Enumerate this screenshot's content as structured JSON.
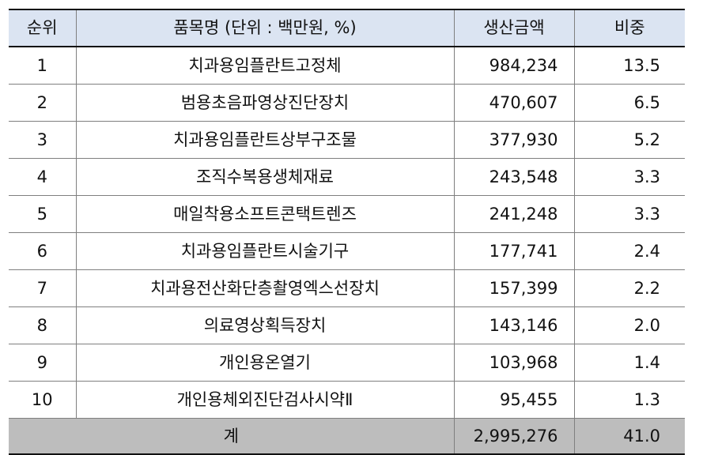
{
  "table": {
    "headers": {
      "rank": "순위",
      "name": "품목명 (단위 : 백만원, %)",
      "amount": "생산금액",
      "share": "비중"
    },
    "rows": [
      {
        "rank": "1",
        "name": "치과용임플란트고정체",
        "amount": "984,234",
        "share": "13.5"
      },
      {
        "rank": "2",
        "name": "범용초음파영상진단장치",
        "amount": "470,607",
        "share": "6.5"
      },
      {
        "rank": "3",
        "name": "치과용임플란트상부구조물",
        "amount": "377,930",
        "share": "5.2"
      },
      {
        "rank": "4",
        "name": "조직수복용생체재료",
        "amount": "243,548",
        "share": "3.3"
      },
      {
        "rank": "5",
        "name": "매일착용소프트콘택트렌즈",
        "amount": "241,248",
        "share": "3.3"
      },
      {
        "rank": "6",
        "name": "치과용임플란트시술기구",
        "amount": "177,741",
        "share": "2.4"
      },
      {
        "rank": "7",
        "name": "치과용전산화단층촬영엑스선장치",
        "amount": "157,399",
        "share": "2.2"
      },
      {
        "rank": "8",
        "name": "의료영상획득장치",
        "amount": "143,146",
        "share": "2.0"
      },
      {
        "rank": "9",
        "name": "개인용온열기",
        "amount": "103,968",
        "share": "1.4"
      },
      {
        "rank": "10",
        "name": "개인용체외진단검사시약Ⅱ",
        "amount": "95,455",
        "share": "1.3"
      }
    ],
    "total": {
      "label": "계",
      "amount": "2,995,276",
      "share": "41.0"
    }
  }
}
